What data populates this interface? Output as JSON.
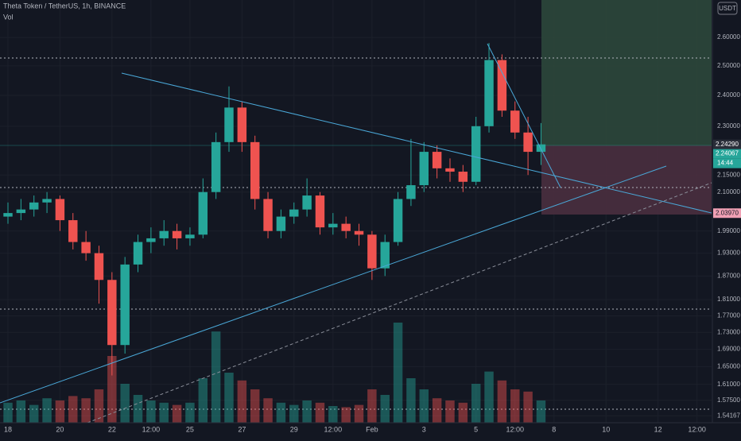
{
  "chart_data": {
    "type": "candlestick",
    "title": "Theta Token / TetherUS, 1h, BINANCE",
    "subtitle": "Vol",
    "currency": "USDT",
    "log_scale": true,
    "grid": true,
    "up_color": "#26a69a",
    "down_color": "#ef5350",
    "x": [
      0,
      0.5,
      1,
      1.5,
      2,
      2.5,
      3,
      3.5,
      4,
      4.5,
      5,
      5.5,
      6,
      6.5,
      7,
      7.5,
      8,
      8.5,
      9,
      9.5,
      10,
      10.5,
      11,
      11.5,
      12,
      12.5,
      13,
      13.5,
      14,
      14.5,
      15,
      15.5,
      16,
      16.5,
      17,
      17.5,
      18,
      18.5,
      19,
      19.5,
      20,
      20.5
    ],
    "candles": [
      [
        2.03,
        2.07,
        2.01,
        2.04
      ],
      [
        2.04,
        2.08,
        2.02,
        2.05
      ],
      [
        2.05,
        2.09,
        2.03,
        2.07
      ],
      [
        2.07,
        2.1,
        2.04,
        2.08
      ],
      [
        2.08,
        2.09,
        1.99,
        2.02
      ],
      [
        2.02,
        2.04,
        1.94,
        1.96
      ],
      [
        1.96,
        1.99,
        1.91,
        1.93
      ],
      [
        1.93,
        1.95,
        1.8,
        1.86
      ],
      [
        1.86,
        1.88,
        1.63,
        1.7
      ],
      [
        1.7,
        1.92,
        1.68,
        1.9
      ],
      [
        1.9,
        1.98,
        1.88,
        1.96
      ],
      [
        1.96,
        2.0,
        1.93,
        1.97
      ],
      [
        1.97,
        2.02,
        1.95,
        1.99
      ],
      [
        1.99,
        2.01,
        1.94,
        1.97
      ],
      [
        1.97,
        2.0,
        1.95,
        1.98
      ],
      [
        1.98,
        2.14,
        1.97,
        2.1
      ],
      [
        2.1,
        2.28,
        2.08,
        2.25
      ],
      [
        2.25,
        2.43,
        2.22,
        2.36
      ],
      [
        2.36,
        2.38,
        2.22,
        2.25
      ],
      [
        2.25,
        2.27,
        2.05,
        2.08
      ],
      [
        2.08,
        2.1,
        1.97,
        1.99
      ],
      [
        1.99,
        2.05,
        1.97,
        2.03
      ],
      [
        2.03,
        2.07,
        2.01,
        2.05
      ],
      [
        2.05,
        2.14,
        2.03,
        2.09
      ],
      [
        2.09,
        2.1,
        1.98,
        2.0
      ],
      [
        2.0,
        2.04,
        1.98,
        2.01
      ],
      [
        2.01,
        2.03,
        1.97,
        1.99
      ],
      [
        1.99,
        2.01,
        1.95,
        1.98
      ],
      [
        1.98,
        1.99,
        1.86,
        1.89
      ],
      [
        1.89,
        1.98,
        1.87,
        1.96
      ],
      [
        1.96,
        2.1,
        1.95,
        2.08
      ],
      [
        2.08,
        2.26,
        2.06,
        2.12
      ],
      [
        2.12,
        2.25,
        2.1,
        2.22
      ],
      [
        2.22,
        2.24,
        2.14,
        2.17
      ],
      [
        2.17,
        2.2,
        2.13,
        2.16
      ],
      [
        2.16,
        2.18,
        2.1,
        2.13
      ],
      [
        2.13,
        2.33,
        2.12,
        2.3
      ],
      [
        2.3,
        2.58,
        2.28,
        2.52
      ],
      [
        2.52,
        2.54,
        2.33,
        2.35
      ],
      [
        2.35,
        2.38,
        2.26,
        2.28
      ],
      [
        2.28,
        2.33,
        2.15,
        2.22
      ],
      [
        2.22,
        2.31,
        2.18,
        2.243
      ]
    ],
    "volume": [
      18,
      20,
      16,
      22,
      20,
      24,
      22,
      30,
      60,
      35,
      25,
      20,
      18,
      16,
      18,
      40,
      82,
      45,
      38,
      30,
      22,
      18,
      16,
      20,
      18,
      15,
      14,
      16,
      30,
      25,
      90,
      40,
      30,
      22,
      20,
      18,
      35,
      46,
      38,
      30,
      28,
      20
    ],
    "vlim": [
      0,
      100
    ],
    "xlim": [
      -0.306,
      27.06
    ],
    "ylim": [
      1.527,
      2.738
    ],
    "xticks": [
      {
        "value": 0,
        "label": "18"
      },
      {
        "value": 2,
        "label": "20"
      },
      {
        "value": 4,
        "label": "22"
      },
      {
        "value": 5.5,
        "label": "12:00"
      },
      {
        "value": 7,
        "label": "25"
      },
      {
        "value": 9,
        "label": "27"
      },
      {
        "value": 11,
        "label": "29"
      },
      {
        "value": 12.5,
        "label": "12:00"
      },
      {
        "value": 14,
        "label": "Feb"
      },
      {
        "value": 16,
        "label": "3"
      },
      {
        "value": 18,
        "label": "5"
      },
      {
        "value": 19.5,
        "label": "12:00"
      },
      {
        "value": 21,
        "label": "8"
      },
      {
        "value": 23,
        "label": "10"
      },
      {
        "value": 25,
        "label": "12"
      },
      {
        "value": 26.5,
        "label": "12:00"
      }
    ],
    "yticks": [
      {
        "value": 2.6,
        "label": "2.60000"
      },
      {
        "value": 2.5,
        "label": "2.50000"
      },
      {
        "value": 2.4,
        "label": "2.40000"
      },
      {
        "value": 2.3,
        "label": "2.30000"
      },
      {
        "value": 2.15,
        "label": "2.15000"
      },
      {
        "value": 2.1,
        "label": "2.10000"
      },
      {
        "value": 1.99,
        "label": "1.99000"
      },
      {
        "value": 1.93,
        "label": "1.93000"
      },
      {
        "value": 1.87,
        "label": "1.87000"
      },
      {
        "value": 1.81,
        "label": "1.81000"
      },
      {
        "value": 1.77,
        "label": "1.77000"
      },
      {
        "value": 1.73,
        "label": "1.73000"
      },
      {
        "value": 1.69,
        "label": "1.69000"
      },
      {
        "value": 1.65,
        "label": "1.65000"
      },
      {
        "value": 1.61,
        "label": "1.61000"
      },
      {
        "value": 1.575,
        "label": "1.57500"
      },
      {
        "value": 1.54167,
        "label": "1.54167"
      }
    ],
    "price_labels": [
      {
        "value": 2.2429,
        "label": "2.24290",
        "color": "#2a2e39"
      },
      {
        "value": 2.24067,
        "label": "2.24067",
        "color": "#26a69a"
      },
      {
        "value": 2.0397,
        "label": "2.03970",
        "color": "#f0a0b4"
      }
    ],
    "countdown": "14:44"
  }
}
